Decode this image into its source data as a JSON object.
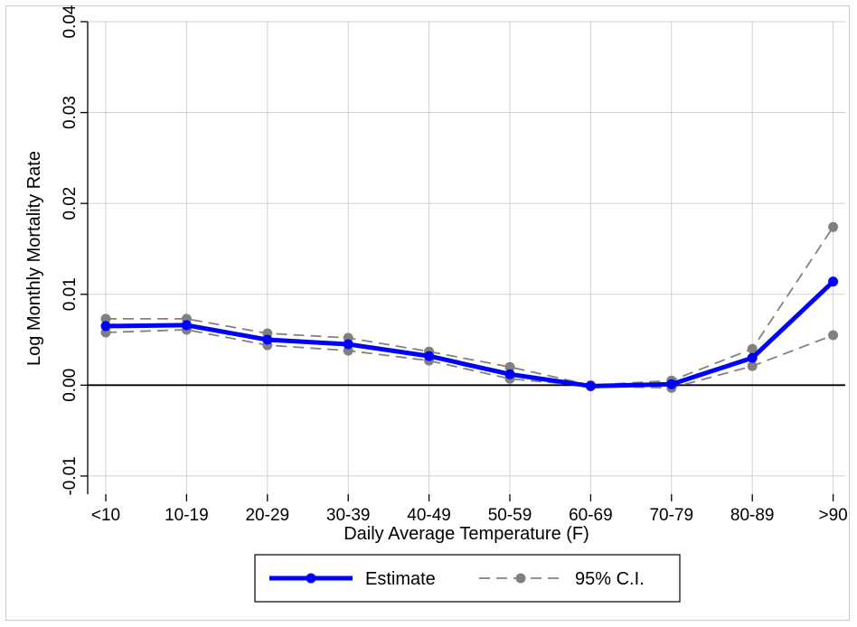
{
  "chart_data": {
    "type": "line",
    "categories": [
      "<10",
      "10-19",
      "20-29",
      "30-39",
      "40-49",
      "50-59",
      "60-69",
      "70-79",
      "80-89",
      ">90"
    ],
    "xlabel": "Daily Average Temperature (F)",
    "ylabel": "Log Monthly Mortality Rate",
    "ylim": [
      -0.012,
      0.04
    ],
    "yticks": [
      -0.01,
      0.0,
      0.01,
      0.02,
      0.03,
      0.04
    ],
    "ytick_labels": [
      "-0.01",
      "0.00",
      "0.01",
      "0.02",
      "0.03",
      "0.04"
    ],
    "grid": true,
    "legend_position": "bottom",
    "series": [
      {
        "name": "Estimate",
        "color": "#0000ff",
        "style": "solid-thick",
        "values": [
          0.0065,
          0.0066,
          0.005,
          0.0045,
          0.0032,
          0.0012,
          -0.0001,
          0.0001,
          0.003,
          0.0114
        ]
      },
      {
        "name": "95% C.I.",
        "color": "#808080",
        "style": "dashed",
        "values": [
          0.0073,
          0.0073,
          0.0057,
          0.0052,
          0.0037,
          0.002,
          0.0,
          0.0005,
          0.004,
          0.0174
        ]
      },
      {
        "name": "",
        "legend": false,
        "color": "#808080",
        "style": "dashed",
        "values": [
          0.0058,
          0.0061,
          0.0044,
          0.0038,
          0.0027,
          0.0007,
          -0.0001,
          -0.0003,
          0.0021,
          0.0055
        ]
      }
    ],
    "zero_line": true
  }
}
